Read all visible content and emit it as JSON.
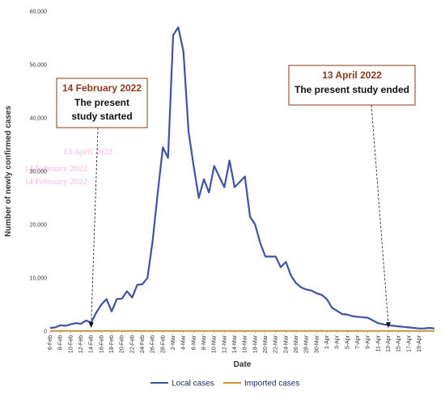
{
  "chart_data": {
    "type": "line",
    "xlabel": "Date",
    "ylabel": "Number of newly confirmed cases",
    "ylim": [
      0,
      60000
    ],
    "yticks": [
      0,
      10000,
      20000,
      30000,
      40000,
      50000,
      60000
    ],
    "ytick_labels": [
      "0",
      "10,000",
      "20,000",
      "30,000",
      "40,000",
      "50,000",
      "60,000"
    ],
    "grid": false,
    "legend_position": "bottom",
    "xtick_labels": [
      "6-Feb",
      "8-Feb",
      "10-Feb",
      "12-Feb",
      "14-Feb",
      "16-Feb",
      "18-Feb",
      "20-Feb",
      "22-Feb",
      "24-Feb",
      "26-Feb",
      "28-Feb",
      "2-Mar",
      "4-Mar",
      "6-Mar",
      "8-Mar",
      "10-Mar",
      "12-Mar",
      "14-Mar",
      "16-Mar",
      "18-Mar",
      "20-Mar",
      "22-Mar",
      "24-Mar",
      "26-Mar",
      "28-Mar",
      "30-Mar",
      "1-Apr",
      "3-Apr",
      "5-Apr",
      "7-Apr",
      "9-Apr",
      "11-Apr",
      "13-Apr",
      "15-Apr",
      "17-Apr",
      "19-Apr"
    ],
    "series": [
      {
        "name": "Local cases",
        "color": "#3f52a3",
        "values": [
          600,
          700,
          1100,
          1000,
          1300,
          1500,
          1400,
          2000,
          1600,
          3500,
          5000,
          6000,
          3700,
          6000,
          6100,
          7500,
          6300,
          8700,
          8800,
          10000,
          17000,
          26000,
          34500,
          32500,
          55500,
          57000,
          52500,
          37500,
          31000,
          25000,
          28500,
          26000,
          31000,
          29000,
          27000,
          32000,
          27000,
          28000,
          29000,
          21500,
          20000,
          16500,
          14000,
          14000,
          14000,
          12000,
          13000,
          10400,
          9000,
          8200,
          7800,
          7600,
          7100,
          6800,
          6000,
          4400,
          3800,
          3200,
          3100,
          2800,
          2700,
          2600,
          2500,
          2000,
          1500,
          1300,
          1100,
          1000,
          900,
          800,
          700,
          600,
          500,
          500,
          600,
          500
        ]
      },
      {
        "name": "Imported cases",
        "color": "#c9953a",
        "values": [
          50,
          50,
          50,
          50,
          50,
          50,
          50,
          50,
          50,
          50,
          50,
          50,
          50,
          50,
          50,
          50,
          50,
          50,
          50,
          50,
          50,
          50,
          50,
          50,
          50,
          50,
          50,
          50,
          50,
          50,
          50,
          50,
          50,
          50,
          50,
          50,
          50,
          50,
          50,
          50,
          50,
          50,
          50,
          50,
          50,
          50,
          50,
          50,
          50,
          50,
          50,
          50,
          50,
          50,
          50,
          50,
          50,
          50,
          50,
          50,
          50,
          50,
          50,
          50,
          50,
          50,
          50,
          50,
          50,
          50,
          50,
          50,
          50,
          50,
          50,
          50
        ]
      }
    ],
    "annotations": [
      {
        "date": "14 February 2022",
        "text_line1": "The present",
        "text_line2": "study started",
        "x_index": 8
      },
      {
        "date": "13 April 2022",
        "text_line1": "The present study ended",
        "text_line2": "",
        "x_index": 66
      }
    ],
    "ghost_text": [
      "13 April 2022",
      "14 February 2022",
      "14 February 2022"
    ]
  }
}
